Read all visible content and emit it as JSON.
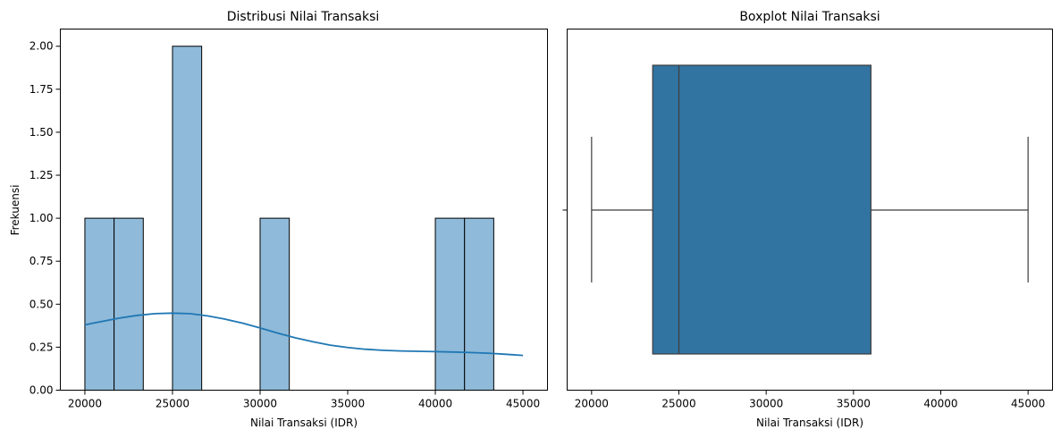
{
  "chart_data": [
    {
      "type": "bar",
      "subtype": "histogram-with-kde",
      "title": "Distribusi Nilai Transaksi",
      "xlabel": "Nilai Transaksi (IDR)",
      "ylabel": "Frekuensi",
      "xlim": [
        18600,
        46400
      ],
      "ylim": [
        0,
        2.1
      ],
      "grid": false,
      "bin_edges": [
        20000,
        21666.67,
        23333.33,
        25000,
        26666.67,
        28333.33,
        30000,
        31666.67,
        33333.33,
        35000,
        36666.67,
        38333.33,
        40000,
        41666.67,
        43333.33,
        45000
      ],
      "values": [
        1,
        1,
        0,
        2,
        0,
        0,
        1,
        0,
        0,
        0,
        0,
        0,
        1,
        1,
        0
      ],
      "xticks": [
        "20000",
        "25000",
        "30000",
        "35000",
        "40000",
        "45000"
      ],
      "yticks": [
        "0.00",
        "0.25",
        "0.50",
        "0.75",
        "1.00",
        "1.25",
        "1.50",
        "1.75",
        "2.00"
      ],
      "bar_color": "#8fbad9",
      "edge_color": "#000000",
      "kde": {
        "x": [
          20000,
          21000,
          22000,
          23000,
          24000,
          25000,
          26000,
          27000,
          28000,
          29000,
          30000,
          31000,
          32000,
          33000,
          34000,
          35000,
          36000,
          37000,
          38000,
          39000,
          40000,
          41000,
          42000,
          43000,
          44000,
          45000
        ],
        "y": [
          0.38,
          0.4,
          0.42,
          0.435,
          0.445,
          0.448,
          0.445,
          0.432,
          0.413,
          0.39,
          0.362,
          0.332,
          0.305,
          0.282,
          0.262,
          0.248,
          0.238,
          0.232,
          0.228,
          0.226,
          0.224,
          0.222,
          0.219,
          0.215,
          0.209,
          0.202
        ],
        "color": "#1f77b4"
      }
    },
    {
      "type": "boxplot",
      "title": "Boxplot Nilai Transaksi",
      "xlabel": "Nilai Transaksi (IDR)",
      "xlim": [
        18600,
        46400
      ],
      "grid": false,
      "whisker_low": 20000,
      "q1": 23500,
      "median": 25000,
      "q3": 36000,
      "whisker_high": 45000,
      "xticks": [
        "20000",
        "25000",
        "30000",
        "35000",
        "40000",
        "45000"
      ],
      "box_color": "#3274a1",
      "line_color": "#3d3d3d"
    }
  ]
}
